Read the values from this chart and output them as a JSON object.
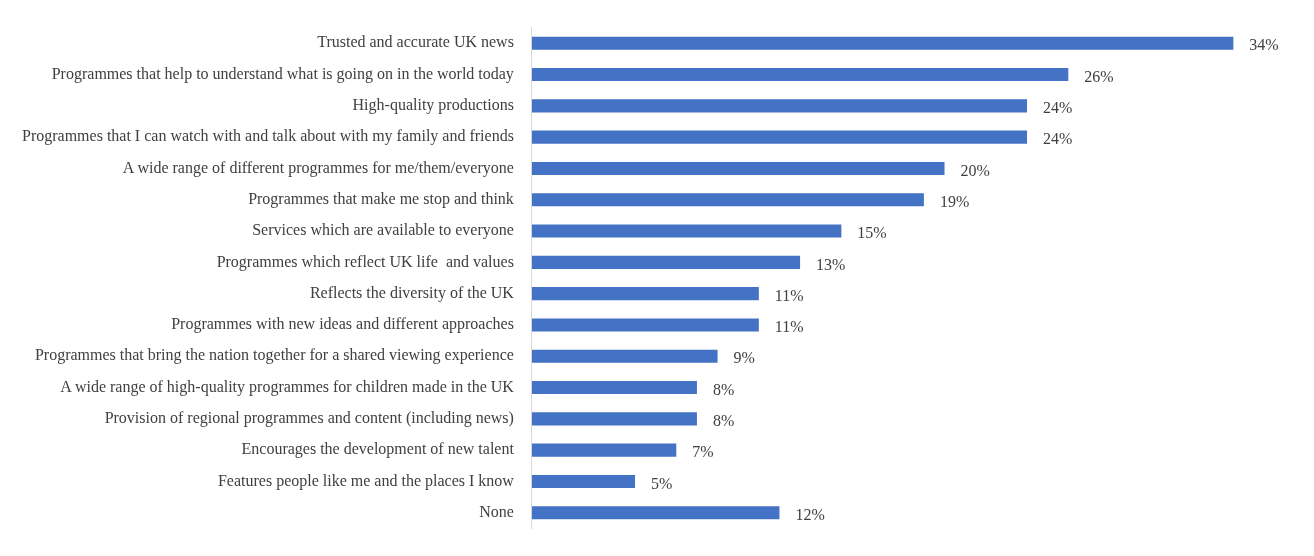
{
  "chart_data": {
    "type": "bar",
    "orientation": "horizontal",
    "categories": [
      "Trusted and accurate UK news",
      "Programmes that help to understand what is going on in the world today",
      "High-quality productions",
      "Programmes that I can watch with and talk about with my family and friends",
      "A wide range of different programmes for me/them/everyone",
      "Programmes that make me stop and think",
      "Services which are available to everyone",
      "Programmes which reflect UK life  and values",
      "Reflects the diversity of the UK",
      "Programmes with new ideas and different approaches",
      "Programmes that bring the nation together for a shared viewing experience",
      "A wide range of high-quality programmes for children made in the UK",
      "Provision of regional programmes and content (including news)",
      "Encourages the development of new talent",
      "Features people like me and the places I know",
      "None"
    ],
    "values": [
      34,
      26,
      24,
      24,
      20,
      19,
      15,
      13,
      11,
      11,
      9,
      8,
      8,
      7,
      5,
      12
    ],
    "value_labels": [
      "34%",
      "26%",
      "24%",
      "24%",
      "20%",
      "19%",
      "15%",
      "13%",
      "11%",
      "11%",
      "9%",
      "8%",
      "8%",
      "7%",
      "5%",
      "12%"
    ],
    "color": "#4472c4",
    "grid": false,
    "legend": false
  }
}
